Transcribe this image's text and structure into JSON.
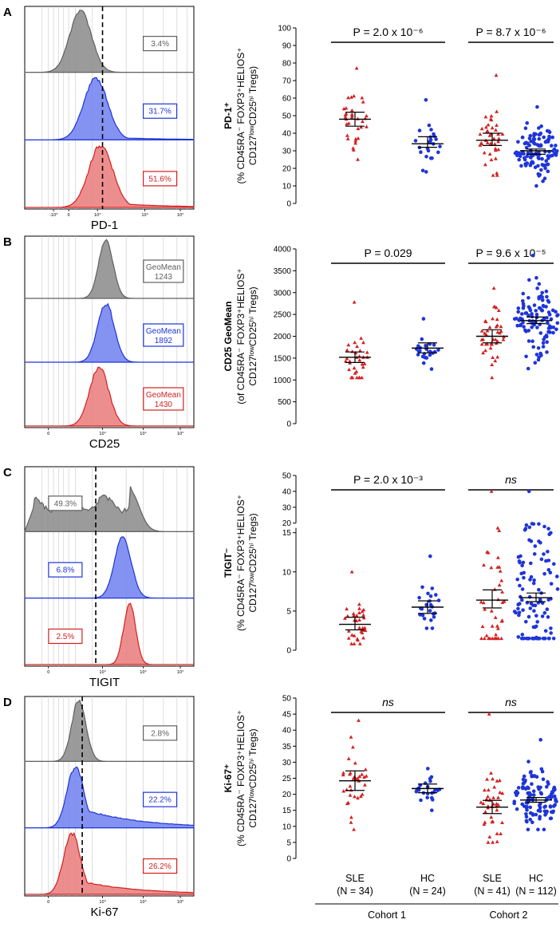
{
  "colors": {
    "sle": "#d42020",
    "hc": "#1f35d8",
    "gray": "#606060",
    "black": "#000000"
  },
  "x_groups": [
    {
      "label": "SLE",
      "n": "(N = 34)"
    },
    {
      "label": "HC",
      "n": "(N = 24)"
    },
    {
      "label": "SLE",
      "n": "(N = 41)"
    },
    {
      "label": "HC",
      "n": "(N = 112)"
    }
  ],
  "cohorts": [
    "Cohort 1",
    "Cohort 2"
  ],
  "chart_data": [
    {
      "id": "A",
      "type": "scatter",
      "marker": "PD-1",
      "histogram": {
        "xlabel": "PD-1",
        "ticks": [
          "-10³",
          "0",
          "10³",
          "10⁴",
          "10⁵"
        ],
        "stats": [
          {
            "text": "3.4%",
            "color": "gray"
          },
          {
            "text": "31.7%",
            "color": "hc"
          },
          {
            "text": "51.6%",
            "color": "sle"
          }
        ]
      },
      "ylabel_bold": "PD-1⁺",
      "ylabel_rest": "(% CD45RA⁻ FOXP3⁺HELIOS⁺",
      "ylabel_line3": "CD127ˡᵒʷCD25ʰⁱ Tregs)",
      "ylim": [
        0,
        100
      ],
      "yticks": [
        "0",
        "10",
        "20",
        "30",
        "40",
        "50",
        "60",
        "70",
        "80",
        "90",
        "100"
      ],
      "comparisons": [
        {
          "text": "P = 2.0 x 10⁻⁶",
          "pair": [
            0,
            1
          ]
        },
        {
          "text": "P = 8.7 x 10⁻⁶",
          "pair": [
            2,
            3
          ]
        }
      ],
      "series": [
        {
          "name": "Cohort 1 SLE",
          "group": 0,
          "color": "sle",
          "mean": 48,
          "ci": [
            44,
            52
          ],
          "n": 34,
          "lo": 25,
          "hi": 77
        },
        {
          "name": "Cohort 1 HC",
          "group": 1,
          "color": "hc",
          "mean": 34,
          "ci": [
            32,
            38
          ],
          "n": 24,
          "lo": 18,
          "hi": 59
        },
        {
          "name": "Cohort 2 SLE",
          "group": 2,
          "color": "sle",
          "mean": 36,
          "ci": [
            33,
            40
          ],
          "n": 41,
          "lo": 16,
          "hi": 73
        },
        {
          "name": "Cohort 2 HC",
          "group": 3,
          "color": "hc",
          "mean": 30,
          "ci": [
            28,
            31
          ],
          "n": 112,
          "lo": 10,
          "hi": 55
        }
      ]
    },
    {
      "id": "B",
      "type": "scatter",
      "marker": "CD25",
      "histogram": {
        "xlabel": "CD25",
        "ticks": [
          "0",
          "10³",
          "10⁴",
          "10⁵"
        ],
        "stats": [
          {
            "text": "GeoMean",
            "value": "1243",
            "color": "gray"
          },
          {
            "text": "GeoMean",
            "value": "1892",
            "color": "hc"
          },
          {
            "text": "GeoMean",
            "value": "1430",
            "color": "sle"
          }
        ]
      },
      "ylabel_bold": "CD25 GeoMean",
      "ylabel_rest": "(of CD45RA⁻ FOXP3⁺HELIOS⁺",
      "ylabel_line3": "CD127ˡᵒʷCD25ʰⁱ Tregs)",
      "ylim": [
        0,
        4000
      ],
      "yticks": [
        "0",
        "500",
        "1000",
        "1500",
        "2000",
        "2500",
        "3000",
        "3500",
        "4000"
      ],
      "comparisons": [
        {
          "text": "P = 0.029",
          "pair": [
            0,
            1
          ]
        },
        {
          "text": "P = 9.6 x 10⁻⁵",
          "pair": [
            2,
            3
          ]
        }
      ],
      "series": [
        {
          "name": "Cohort 1 SLE",
          "group": 0,
          "color": "sle",
          "mean": 1520,
          "ci": [
            1400,
            1640
          ],
          "n": 34,
          "lo": 1050,
          "hi": 2780
        },
        {
          "name": "Cohort 1 HC",
          "group": 1,
          "color": "hc",
          "mean": 1730,
          "ci": [
            1620,
            1850
          ],
          "n": 24,
          "lo": 1250,
          "hi": 2400
        },
        {
          "name": "Cohort 2 SLE",
          "group": 2,
          "color": "sle",
          "mean": 2000,
          "ci": [
            1850,
            2150
          ],
          "n": 41,
          "lo": 1050,
          "hi": 3100
        },
        {
          "name": "Cohort 2 HC",
          "group": 3,
          "color": "hc",
          "mean": 2360,
          "ci": [
            2290,
            2440
          ],
          "n": 112,
          "lo": 1260,
          "hi": 3850
        }
      ]
    },
    {
      "id": "C",
      "type": "scatter",
      "marker": "TIGIT",
      "histogram": {
        "xlabel": "TIGIT",
        "ticks": [
          "0",
          "10³",
          "10⁴",
          "10⁵"
        ],
        "stats": [
          {
            "text": "49.3%",
            "color": "gray"
          },
          {
            "text": "6.8%",
            "color": "hc"
          },
          {
            "text": "2.5%",
            "color": "sle"
          }
        ]
      },
      "ylabel_bold": "TIGIT⁻",
      "ylabel_rest": "(% CD45RA⁻ FOXP3⁺HELIOS⁺",
      "ylabel_line3": "CD127ˡᵒʷCD25ʰⁱ Tregs)",
      "ylim": [
        0,
        50
      ],
      "axis_break": [
        15,
        20
      ],
      "yticks": [
        "0",
        "5",
        "10",
        "15",
        "20",
        "30",
        "40",
        "50"
      ],
      "comparisons": [
        {
          "text": "P = 2.0 x 10⁻³",
          "pair": [
            0,
            1
          ]
        },
        {
          "text": "ns",
          "pair": [
            2,
            3
          ]
        }
      ],
      "series": [
        {
          "name": "Cohort 1 SLE",
          "group": 0,
          "color": "sle",
          "mean": 3.3,
          "ci": [
            2.6,
            4.2
          ],
          "n": 34,
          "lo": 0.8,
          "hi": 10
        },
        {
          "name": "Cohort 1 HC",
          "group": 1,
          "color": "hc",
          "mean": 5.5,
          "ci": [
            4.7,
            6.3
          ],
          "n": 24,
          "lo": 2.8,
          "hi": 12
        },
        {
          "name": "Cohort 2 SLE",
          "group": 2,
          "color": "sle",
          "mean": 6.4,
          "ci": [
            5.4,
            7.7
          ],
          "n": 41,
          "lo": 1.5,
          "hi": 40
        },
        {
          "name": "Cohort 2 HC",
          "group": 3,
          "color": "hc",
          "mean": 6.7,
          "ci": [
            6.2,
            7.3
          ],
          "n": 112,
          "lo": 1.5,
          "hi": 40
        }
      ]
    },
    {
      "id": "D",
      "type": "scatter",
      "marker": "Ki-67",
      "histogram": {
        "xlabel": "Ki-67",
        "ticks": [
          "0",
          "10³",
          "10⁴",
          "10⁵"
        ],
        "stats": [
          {
            "text": "2.8%",
            "color": "gray"
          },
          {
            "text": "22.2%",
            "color": "hc"
          },
          {
            "text": "26.2%",
            "color": "sle"
          }
        ]
      },
      "ylabel_bold": "Ki-67⁺",
      "ylabel_rest": "(% CD45RA⁻ FOXP3⁺HELIOS⁺",
      "ylabel_line3": "CD127ˡᵒʷCD25ʰⁱ Tregs)",
      "ylim": [
        0,
        50
      ],
      "yticks": [
        "0",
        "5",
        "10",
        "15",
        "20",
        "25",
        "30",
        "35",
        "40",
        "45",
        "50"
      ],
      "comparisons": [
        {
          "text": "ns",
          "pair": [
            0,
            1
          ]
        },
        {
          "text": "ns",
          "pair": [
            2,
            3
          ]
        }
      ],
      "series": [
        {
          "name": "Cohort 1 SLE",
          "group": 0,
          "color": "sle",
          "mean": 24.2,
          "ci": [
            21.2,
            27.3
          ],
          "n": 34,
          "lo": 9,
          "hi": 43
        },
        {
          "name": "Cohort 1 HC",
          "group": 1,
          "color": "hc",
          "mean": 21.8,
          "ci": [
            20.5,
            23.2
          ],
          "n": 24,
          "lo": 15,
          "hi": 28
        },
        {
          "name": "Cohort 2 SLE",
          "group": 2,
          "color": "sle",
          "mean": 16.0,
          "ci": [
            14.0,
            18.1
          ],
          "n": 41,
          "lo": 5,
          "hi": 45
        },
        {
          "name": "Cohort 2 HC",
          "group": 3,
          "color": "hc",
          "mean": 18.2,
          "ci": [
            17.5,
            19.0
          ],
          "n": 112,
          "lo": 9,
          "hi": 37
        }
      ]
    }
  ]
}
